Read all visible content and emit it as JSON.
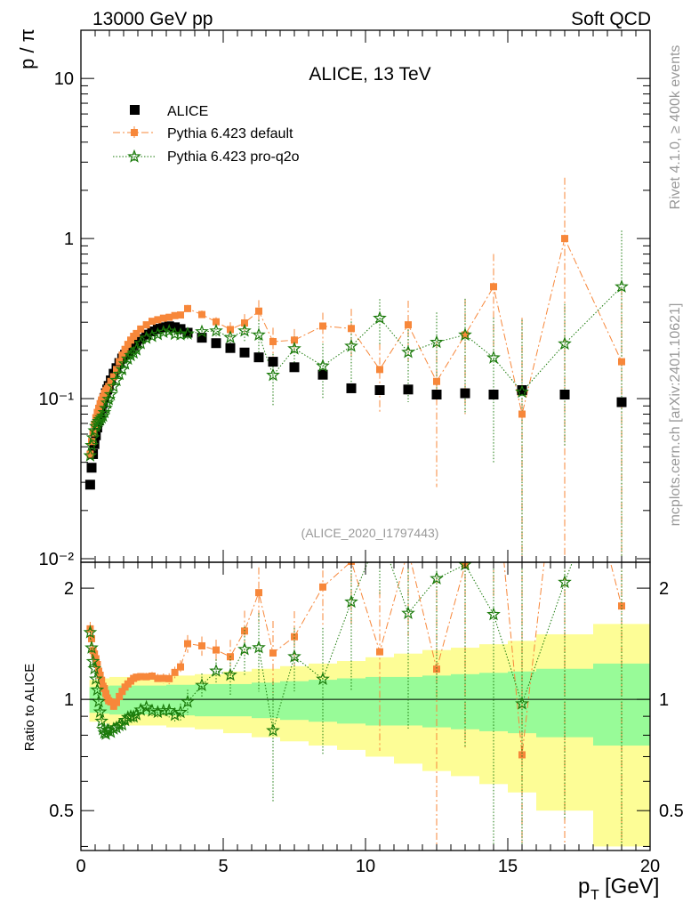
{
  "header": {
    "left": "13000 GeV pp",
    "right": "Soft QCD",
    "side_top": "Rivet 4.1.0, ≥ 400k events",
    "side_bottom": "mcplots.cern.ch [arXiv:2401.10621]"
  },
  "colors": {
    "data": "#000000",
    "default": "#f7873a",
    "proq2o": "#1a7a0a",
    "band_inner": "#98fb98",
    "band_outer": "#fdfd96",
    "label_gray": "#999999"
  },
  "chart_data": {
    "type": "scatter",
    "title": "ALICE, 13 TeV",
    "analysis_label": "(ALICE_2020_I1797443)",
    "xlabel": "p_T [GeV]",
    "ylabel_main": "p / π",
    "ylabel_ratio": "Ratio to ALICE",
    "xlim": [
      0,
      20
    ],
    "ylim_main": [
      0.0095,
      20
    ],
    "ylim_ratio": [
      0.39,
      2.35
    ],
    "x_ticks": [
      0,
      5,
      10,
      15,
      20
    ],
    "main_yticks": [
      {
        "v": 10,
        "label": "10"
      },
      {
        "v": 1,
        "label": "1"
      },
      {
        "v": 0.1,
        "label": "10⁻¹"
      },
      {
        "v": 0.01,
        "label": "10⁻²"
      }
    ],
    "ratio_yticks": [
      0.5,
      1,
      2
    ],
    "legend": [
      "ALICE",
      "Pythia 6.423 default",
      "Pythia 6.423 pro-q2o"
    ],
    "x": [
      0.325,
      0.375,
      0.425,
      0.475,
      0.525,
      0.575,
      0.625,
      0.675,
      0.725,
      0.775,
      0.825,
      0.875,
      0.925,
      0.975,
      1.05,
      1.15,
      1.25,
      1.35,
      1.45,
      1.55,
      1.65,
      1.75,
      1.85,
      1.95,
      2.1,
      2.3,
      2.5,
      2.7,
      2.9,
      3.1,
      3.3,
      3.5,
      3.75,
      4.25,
      4.75,
      5.25,
      5.75,
      6.25,
      6.75,
      7.5,
      8.5,
      9.5,
      10.5,
      11.5,
      12.5,
      13.5,
      14.5,
      15.5,
      17.0,
      19.0
    ],
    "alice": [
      0.029,
      0.037,
      0.045,
      0.052,
      0.059,
      0.066,
      0.073,
      0.08,
      0.087,
      0.094,
      0.101,
      0.108,
      0.114,
      0.12,
      0.13,
      0.143,
      0.155,
      0.167,
      0.178,
      0.188,
      0.198,
      0.207,
      0.215,
      0.222,
      0.236,
      0.251,
      0.263,
      0.273,
      0.279,
      0.283,
      0.279,
      0.272,
      0.258,
      0.24,
      0.222,
      0.207,
      0.194,
      0.181,
      0.17,
      0.157,
      0.141,
      0.116,
      0.113,
      0.114,
      0.106,
      0.108,
      0.106,
      0.113,
      0.106,
      0.095
    ],
    "band_edges": [
      0.3,
      0.5,
      0.7,
      1.0,
      1.5,
      2.0,
      3.0,
      4.0,
      5.0,
      6.0,
      7.0,
      8.0,
      9.0,
      10.0,
      11.0,
      12.0,
      13.0,
      14.0,
      15.0,
      16.0,
      18.0,
      20.0
    ],
    "band_inner": [
      0.08,
      0.08,
      0.085,
      0.09,
      0.09,
      0.09,
      0.095,
      0.1,
      0.1,
      0.11,
      0.12,
      0.13,
      0.14,
      0.15,
      0.15,
      0.16,
      0.17,
      0.18,
      0.19,
      0.21,
      0.25
    ],
    "band_outer": [
      0.13,
      0.13,
      0.14,
      0.15,
      0.15,
      0.15,
      0.16,
      0.17,
      0.19,
      0.21,
      0.23,
      0.25,
      0.27,
      0.3,
      0.33,
      0.36,
      0.38,
      0.41,
      0.44,
      0.5,
      0.6
    ],
    "series": [
      {
        "name": "Pythia 6.423 default",
        "values": [
          0.045,
          0.054,
          0.061,
          0.069,
          0.076,
          0.082,
          0.087,
          0.093,
          0.098,
          0.102,
          0.108,
          0.112,
          0.115,
          0.119,
          0.128,
          0.137,
          0.152,
          0.17,
          0.187,
          0.203,
          0.218,
          0.232,
          0.245,
          0.255,
          0.272,
          0.289,
          0.304,
          0.311,
          0.318,
          0.322,
          0.33,
          0.333,
          0.365,
          0.335,
          0.302,
          0.27,
          0.297,
          0.352,
          0.227,
          0.232,
          0.284,
          0.274,
          0.152,
          0.289,
          0.128,
          0.25,
          0.5,
          0.08,
          1.0,
          0.17
        ],
        "errors": [
          0.002,
          0.002,
          0.002,
          0.002,
          0.002,
          0.002,
          0.002,
          0.002,
          0.002,
          0.002,
          0.002,
          0.002,
          0.002,
          0.002,
          0.003,
          0.003,
          0.003,
          0.004,
          0.004,
          0.004,
          0.005,
          0.005,
          0.005,
          0.005,
          0.006,
          0.007,
          0.008,
          0.009,
          0.01,
          0.011,
          0.012,
          0.014,
          0.02,
          0.02,
          0.02,
          0.03,
          0.04,
          0.06,
          0.05,
          0.04,
          0.06,
          0.09,
          0.07,
          0.12,
          0.1,
          0.17,
          0.3,
          0.24,
          1.4,
          0.32
        ]
      },
      {
        "name": "Pythia 6.423 pro-q2o",
        "values": [
          0.044,
          0.051,
          0.057,
          0.063,
          0.067,
          0.07,
          0.072,
          0.074,
          0.076,
          0.078,
          0.082,
          0.087,
          0.094,
          0.099,
          0.106,
          0.119,
          0.13,
          0.142,
          0.152,
          0.165,
          0.177,
          0.186,
          0.193,
          0.202,
          0.221,
          0.239,
          0.245,
          0.252,
          0.26,
          0.264,
          0.253,
          0.251,
          0.254,
          0.262,
          0.265,
          0.241,
          0.265,
          0.25,
          0.14,
          0.205,
          0.16,
          0.213,
          0.318,
          0.195,
          0.225,
          0.25,
          0.18,
          0.11,
          0.22,
          0.5
        ],
        "errors": [
          0.002,
          0.002,
          0.002,
          0.002,
          0.002,
          0.002,
          0.002,
          0.002,
          0.002,
          0.002,
          0.002,
          0.002,
          0.002,
          0.002,
          0.003,
          0.003,
          0.003,
          0.004,
          0.004,
          0.004,
          0.005,
          0.005,
          0.005,
          0.005,
          0.006,
          0.007,
          0.008,
          0.009,
          0.01,
          0.011,
          0.012,
          0.014,
          0.02,
          0.02,
          0.02,
          0.03,
          0.04,
          0.06,
          0.05,
          0.04,
          0.06,
          0.09,
          0.1,
          0.1,
          0.12,
          0.17,
          0.14,
          0.2,
          0.17,
          0.62
        ]
      }
    ]
  }
}
